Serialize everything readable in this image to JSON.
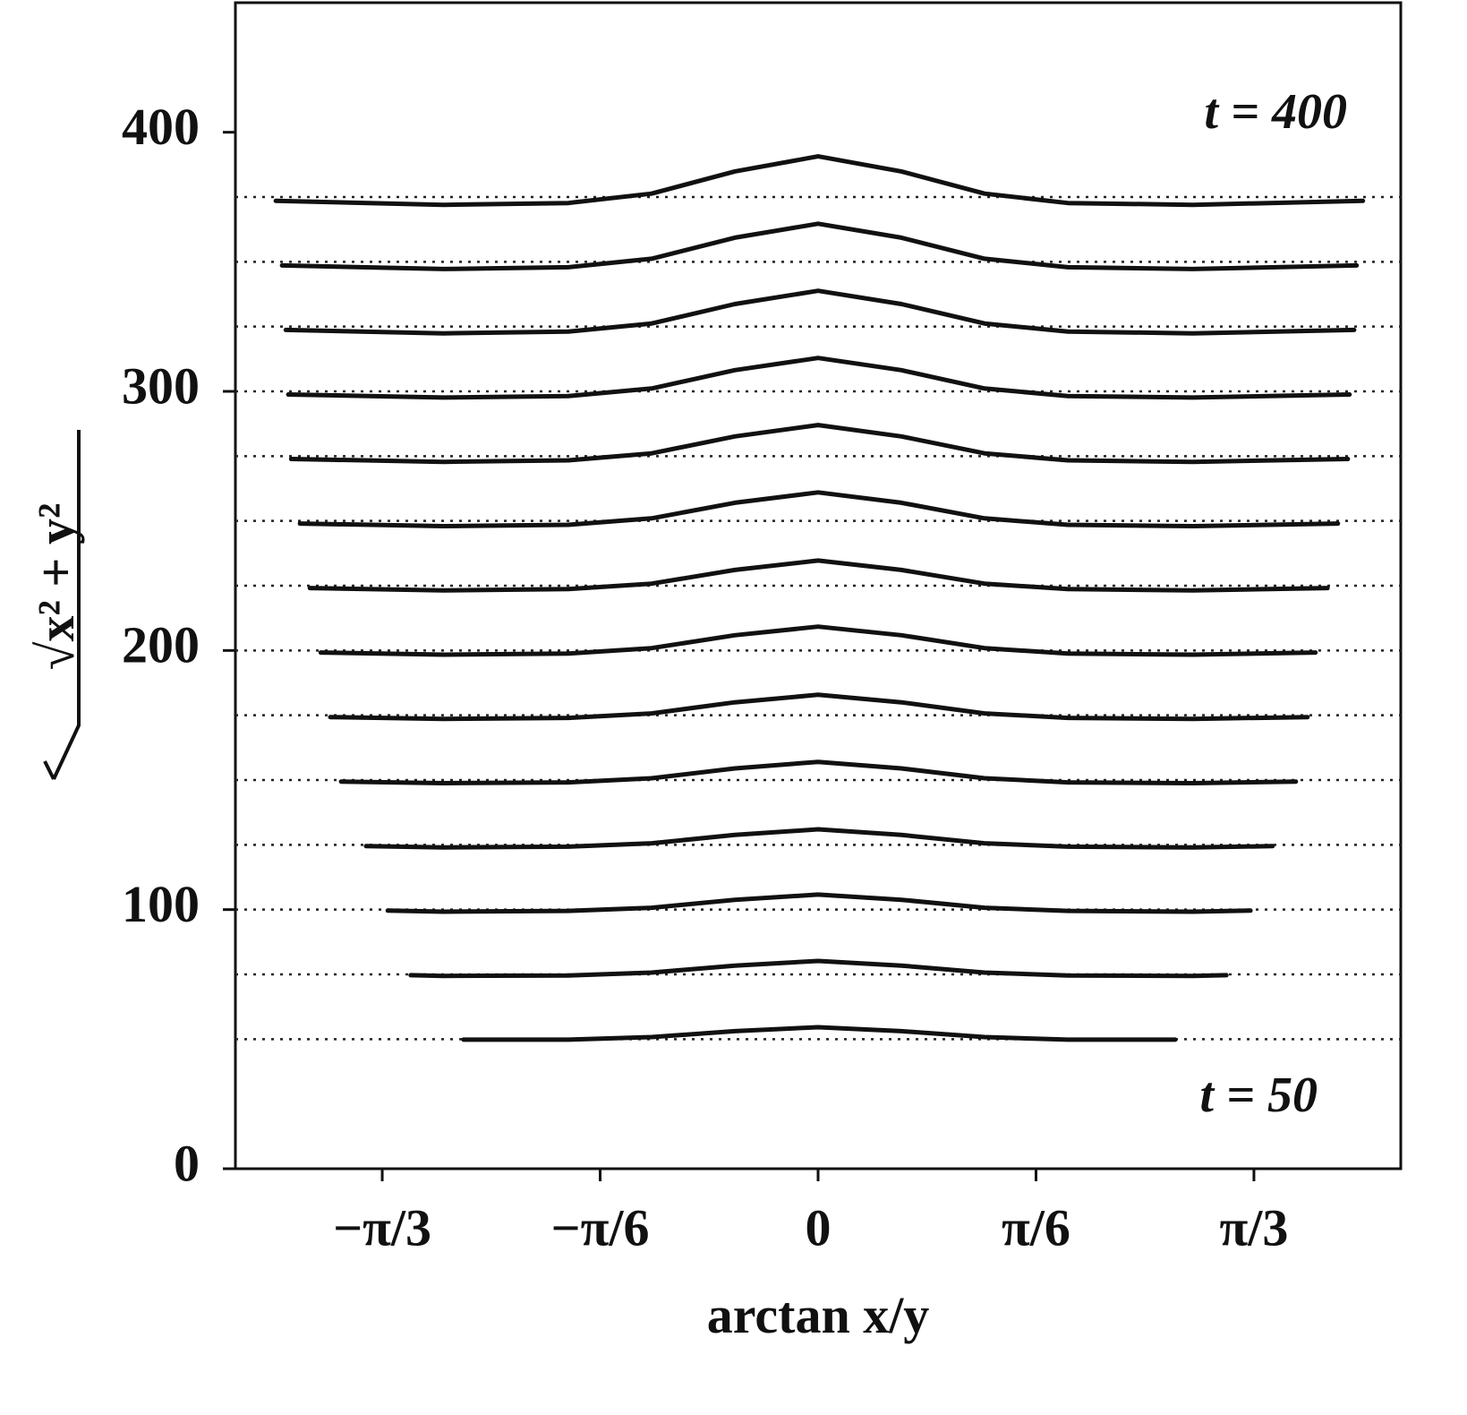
{
  "chart_data": {
    "type": "line",
    "xlabel": "arctan x/y",
    "ylabel": "√x² + y²",
    "annotations": [
      "t = 400",
      "t = 50"
    ],
    "xlim": [
      -1.4,
      1.4
    ],
    "ylim": [
      0,
      450
    ],
    "xticks": [
      {
        "value": -1.0472,
        "label": "−π/3"
      },
      {
        "value": -0.5236,
        "label": "−π/6"
      },
      0,
      {
        "value": 0.5236,
        "label": "π/6"
      },
      {
        "value": 1.0472,
        "label": "π/3"
      }
    ],
    "yticks": [
      0,
      100,
      200,
      300,
      400
    ],
    "reference_lines": [
      50,
      75,
      100,
      125,
      150,
      175,
      200,
      225,
      250,
      275,
      300,
      325,
      350,
      375
    ],
    "reference_line_color": "#222",
    "series": [
      {
        "color": "#111",
        "x": [
          -1.303,
          -0.9,
          -0.6,
          -0.4,
          -0.2,
          0,
          0.2,
          0.4,
          0.6,
          0.9,
          1.309
        ],
        "values": [
          373.5,
          372,
          372.7,
          376.3,
          384.9,
          390.7,
          384.9,
          376.3,
          372.7,
          372,
          373.5
        ]
      },
      {
        "color": "#111",
        "x": [
          -1.288,
          -0.9,
          -0.6,
          -0.4,
          -0.2,
          0,
          0.2,
          0.4,
          0.6,
          0.9,
          1.294
        ],
        "values": [
          348.6,
          347.2,
          347.9,
          351.2,
          359.3,
          364.7,
          359.3,
          351.2,
          347.9,
          347.2,
          348.6
        ]
      },
      {
        "color": "#111",
        "x": [
          -1.279,
          -0.9,
          -0.6,
          -0.4,
          -0.2,
          0,
          0.2,
          0.4,
          0.6,
          0.9,
          1.288
        ],
        "values": [
          323.7,
          322.4,
          323.1,
          326.2,
          333.7,
          338.8,
          333.7,
          326.2,
          323.1,
          322.4,
          323.7
        ]
      },
      {
        "color": "#111",
        "x": [
          -1.273,
          -0.9,
          -0.6,
          -0.4,
          -0.2,
          0,
          0.2,
          0.4,
          0.6,
          0.9,
          1.277
        ],
        "values": [
          298.8,
          297.6,
          298.2,
          301.1,
          308.2,
          312.9,
          308.2,
          301.1,
          298.2,
          297.6,
          298.8
        ]
      },
      {
        "color": "#111",
        "x": [
          -1.266,
          -0.9,
          -0.6,
          -0.4,
          -0.2,
          0,
          0.2,
          0.4,
          0.6,
          0.9,
          1.273
        ],
        "values": [
          273.9,
          272.8,
          273.4,
          276.1,
          282.6,
          287,
          282.6,
          276.1,
          273.4,
          272.8,
          273.9
        ]
      },
      {
        "color": "#111",
        "x": [
          -1.245,
          -0.9,
          -0.6,
          -0.4,
          -0.2,
          0,
          0.2,
          0.4,
          0.6,
          0.9,
          1.249
        ],
        "values": [
          249,
          248,
          248.5,
          251,
          257,
          261,
          257,
          251,
          248.5,
          248,
          249
        ]
      },
      {
        "color": "#111",
        "x": [
          -1.221,
          -0.9,
          -0.6,
          -0.4,
          -0.2,
          0,
          0.2,
          0.4,
          0.6,
          0.9,
          1.224
        ],
        "values": [
          224.1,
          223.2,
          223.7,
          225.8,
          231.1,
          234.7,
          231.1,
          225.8,
          223.7,
          223.2,
          224.1
        ]
      },
      {
        "color": "#111",
        "x": [
          -1.195,
          -0.9,
          -0.6,
          -0.4,
          -0.2,
          0,
          0.2,
          0.4,
          0.6,
          0.9,
          1.195
        ],
        "values": [
          199.2,
          198.4,
          198.8,
          200.9,
          205.9,
          209.2,
          205.9,
          200.9,
          198.8,
          198.4,
          199.2
        ]
      },
      {
        "color": "#111",
        "x": [
          -1.172,
          -0.9,
          -0.6,
          -0.4,
          -0.2,
          0,
          0.2,
          0.4,
          0.6,
          0.9,
          1.176
        ],
        "values": [
          174.3,
          173.6,
          174,
          175.7,
          180,
          182.9,
          180,
          175.7,
          174,
          173.6,
          174.3
        ]
      },
      {
        "color": "#111",
        "x": [
          -1.146,
          -0.9,
          -0.6,
          -0.4,
          -0.2,
          0,
          0.2,
          0.4,
          0.6,
          0.9,
          1.148
        ],
        "values": [
          149.4,
          148.8,
          149.1,
          150.7,
          154.5,
          157,
          154.5,
          150.7,
          149.1,
          148.8,
          149.4
        ]
      },
      {
        "color": "#111",
        "x": [
          -1.086,
          -0.9,
          -0.6,
          -0.4,
          -0.2,
          0,
          0.2,
          0.4,
          0.6,
          0.9,
          1.092
        ],
        "values": [
          124.5,
          124,
          124.3,
          125.6,
          128.8,
          131,
          128.8,
          125.6,
          124.3,
          124,
          124.5
        ]
      },
      {
        "color": "#111",
        "x": [
          -1.034,
          -0.9,
          -0.6,
          -0.4,
          -0.2,
          0,
          0.2,
          0.4,
          0.6,
          0.9,
          1.039
        ],
        "values": [
          99.6,
          99.2,
          99.5,
          100.7,
          103.8,
          105.8,
          103.8,
          100.7,
          99.5,
          99.2,
          99.6
        ]
      },
      {
        "color": "#111",
        "x": [
          -0.979,
          -0.9,
          -0.6,
          -0.4,
          -0.2,
          0,
          0.2,
          0.4,
          0.6,
          0.9,
          0.981
        ],
        "values": [
          74.7,
          74.4,
          74.6,
          75.7,
          78.4,
          80.2,
          78.4,
          75.7,
          74.6,
          74.4,
          74.7
        ]
      },
      {
        "color": "#111",
        "x": [
          -0.852,
          -0.6,
          -0.4,
          -0.2,
          0,
          0.2,
          0.4,
          0.6,
          0.858
        ],
        "values": [
          49.8,
          49.8,
          50.8,
          53.1,
          54.6,
          53.1,
          50.8,
          49.8,
          49.8
        ]
      }
    ]
  }
}
